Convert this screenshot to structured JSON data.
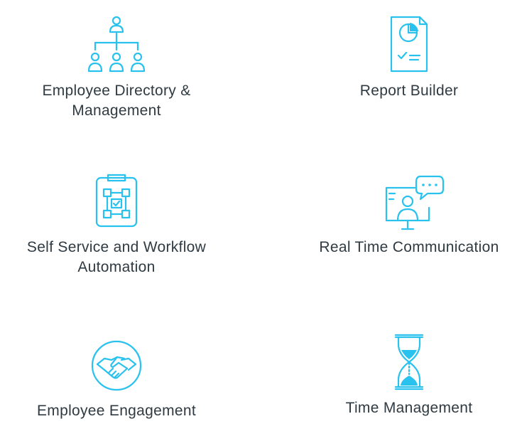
{
  "accent_color": "#29c1ee",
  "features": [
    {
      "id": "employee-directory",
      "icon": "org-chart-icon",
      "label_line1": "Employee Directory &",
      "label_line2": "Management"
    },
    {
      "id": "report-builder",
      "icon": "report-icon",
      "label_line1": "Report Builder",
      "label_line2": ""
    },
    {
      "id": "self-service",
      "icon": "workflow-clipboard-icon",
      "label_line1": "Self Service and Workflow",
      "label_line2": "Automation"
    },
    {
      "id": "real-time-communication",
      "icon": "video-chat-icon",
      "label_line1": "Real Time Communication",
      "label_line2": ""
    },
    {
      "id": "employee-engagement",
      "icon": "handshake-icon",
      "label_line1": "Employee Engagement",
      "label_line2": ""
    },
    {
      "id": "time-management",
      "icon": "hourglass-icon",
      "label_line1": "Time Management",
      "label_line2": ""
    }
  ]
}
